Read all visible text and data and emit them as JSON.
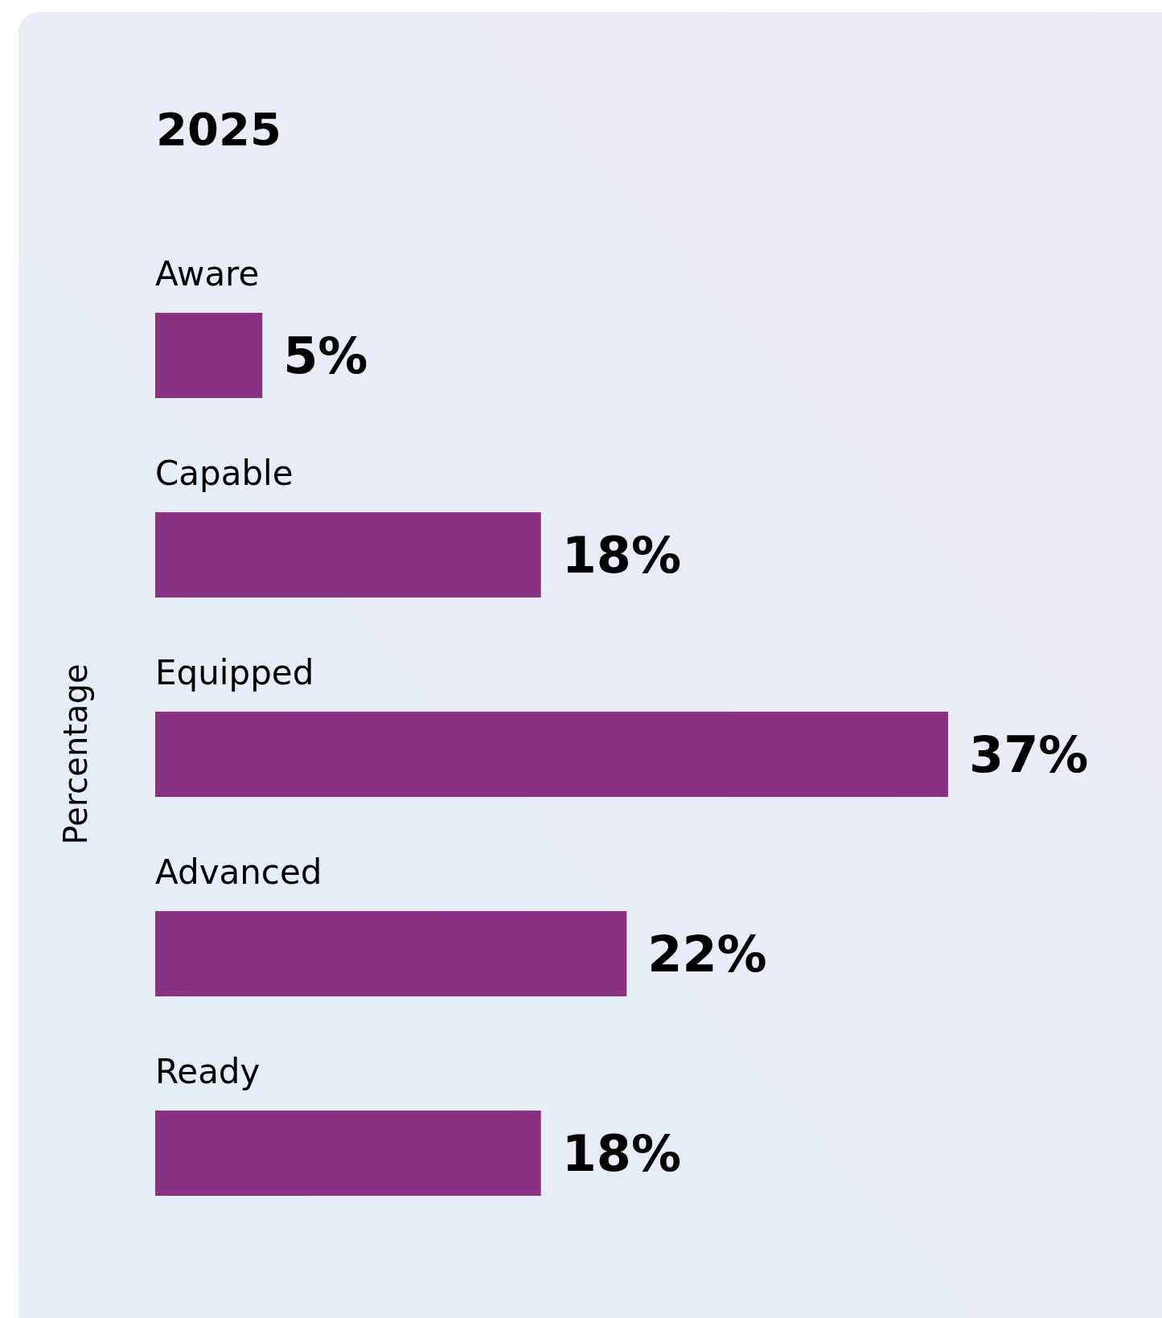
{
  "chart_data": {
    "type": "bar",
    "orientation": "horizontal",
    "title": "2025",
    "ylabel": "Percentage",
    "categories": [
      "Aware",
      "Capable",
      "Equipped",
      "Advanced",
      "Ready"
    ],
    "values": [
      5,
      18,
      37,
      22,
      18
    ],
    "color": "#8a3183",
    "data_labels": true,
    "value_labels": [
      "5%",
      "18%",
      "37%",
      "22%",
      "18%"
    ]
  }
}
